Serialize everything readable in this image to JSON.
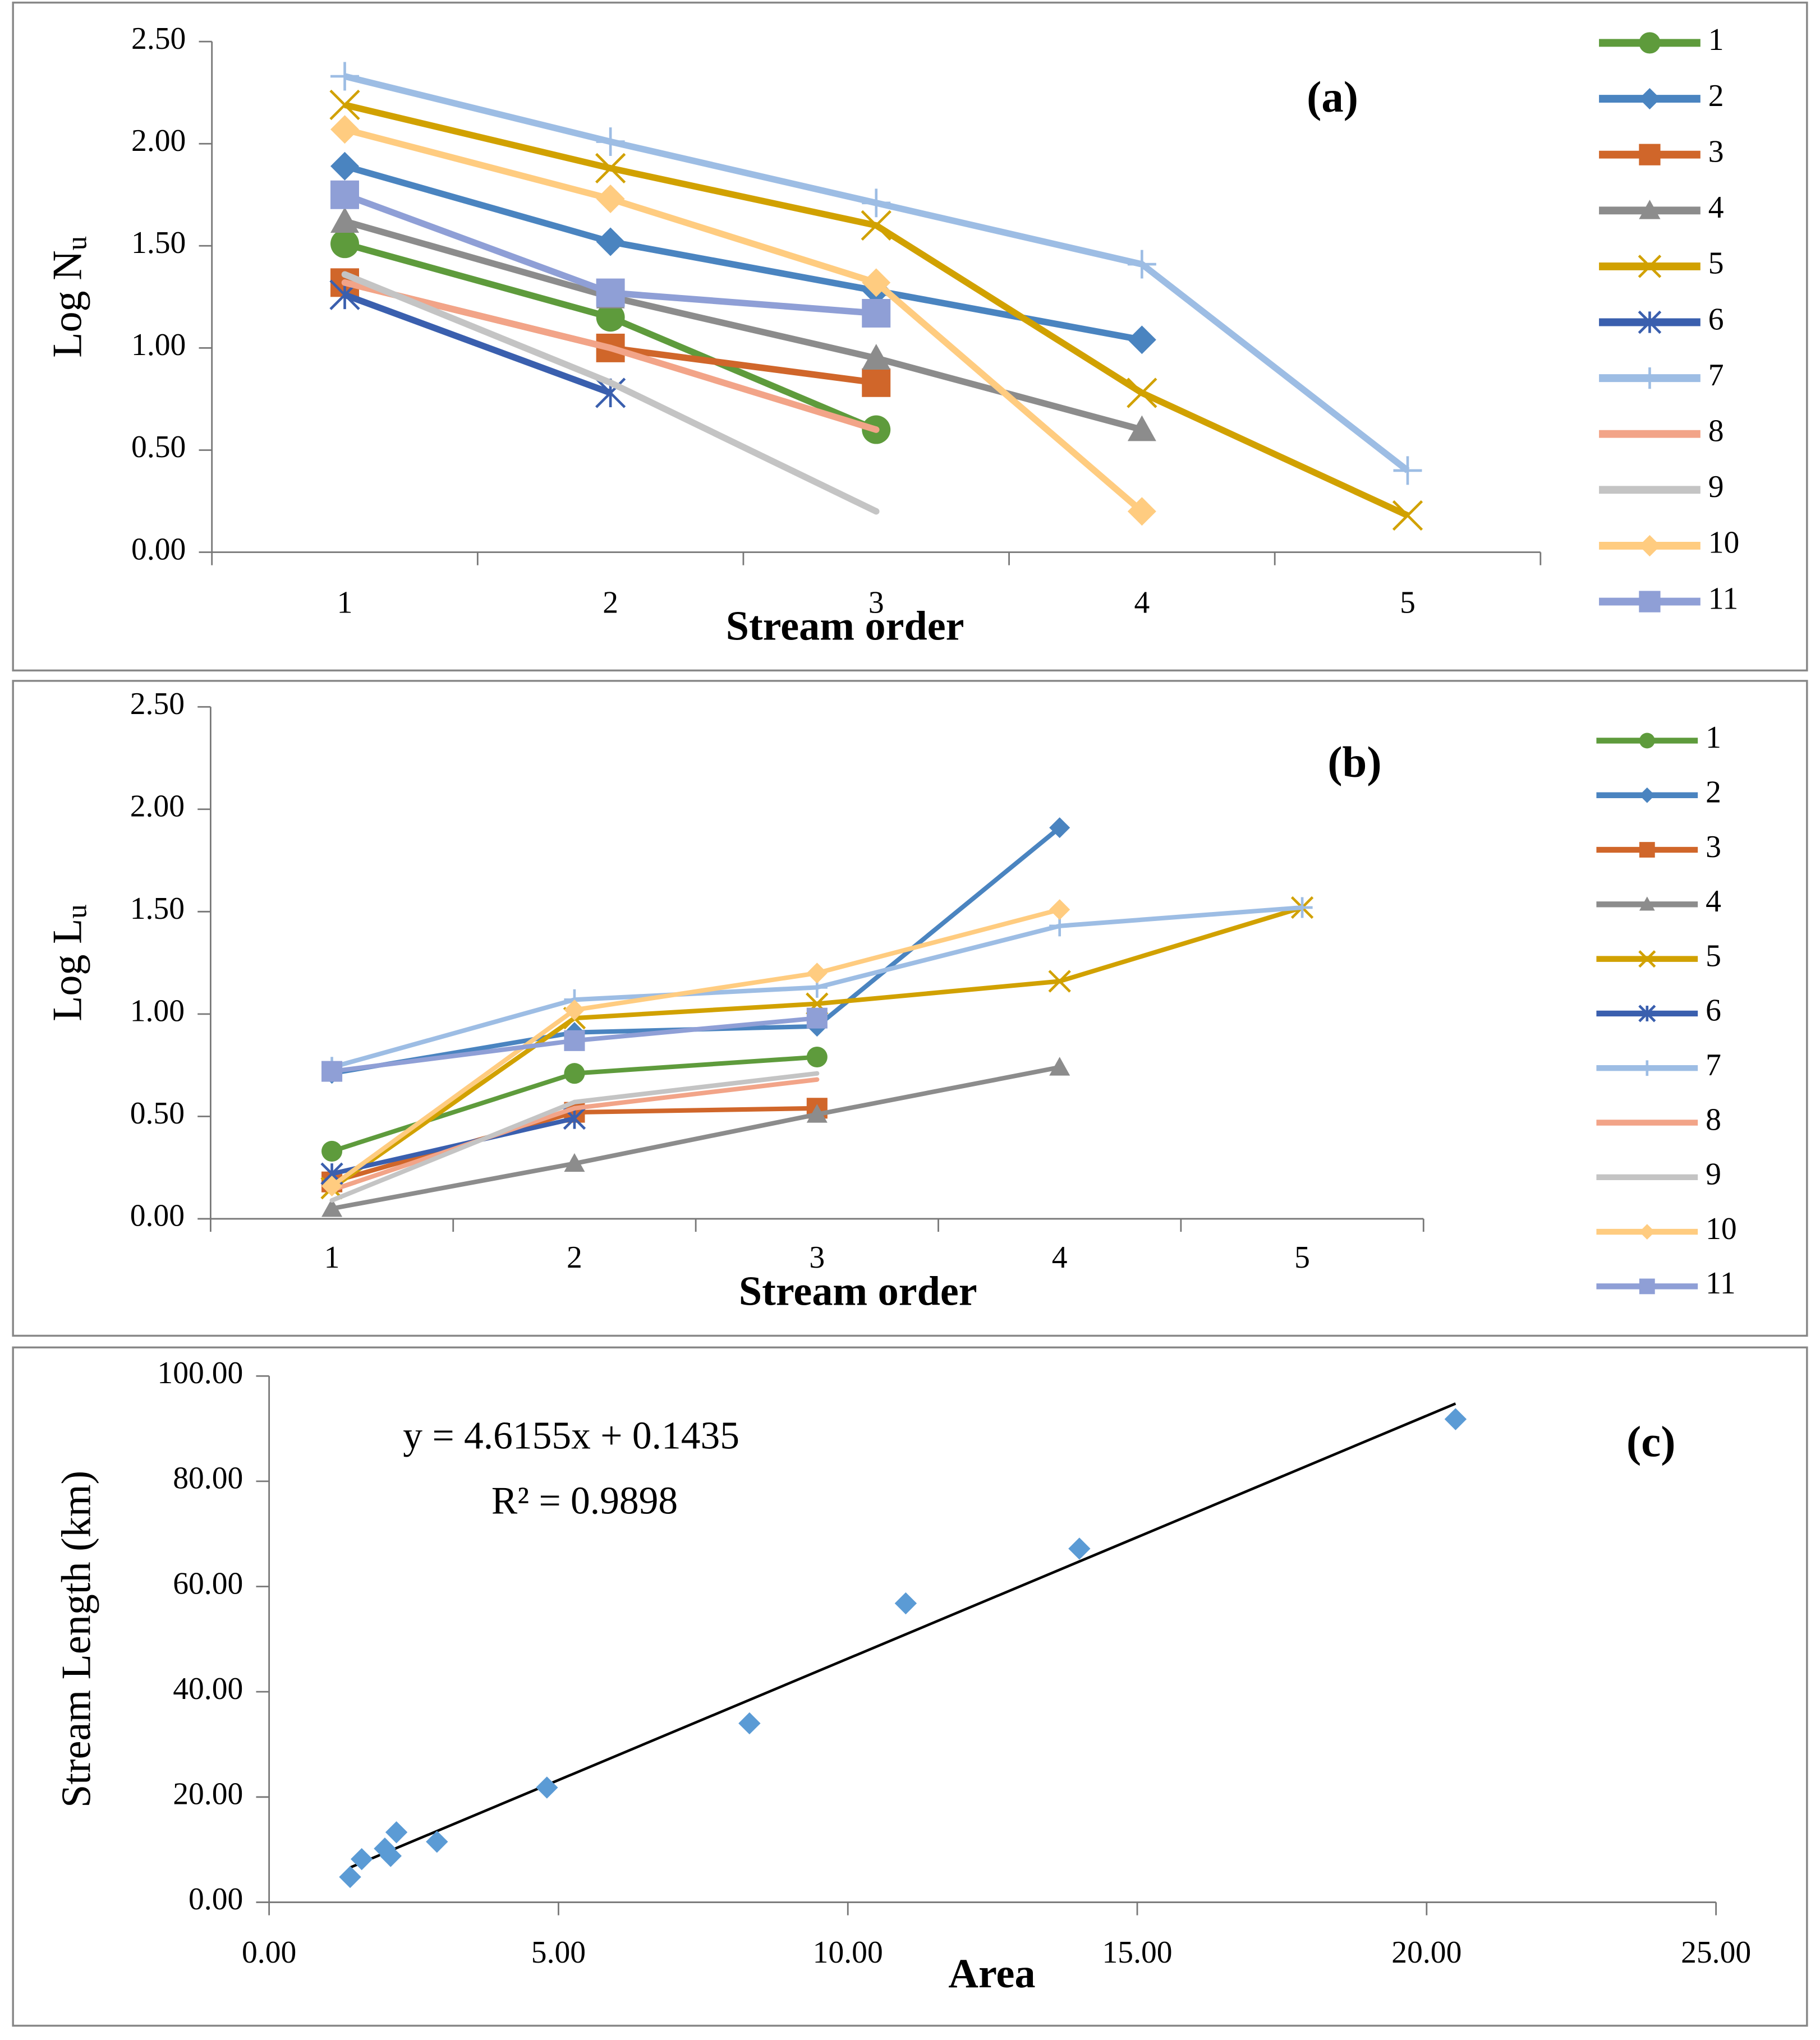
{
  "chart_data": [
    {
      "type": "line",
      "annotation": "(a)",
      "xlabel": "Stream order",
      "ylabel": "Log N",
      "ylabel_subscript": "u",
      "categories": [
        "1",
        "2",
        "3",
        "4",
        "5"
      ],
      "ylim": [
        0,
        2.5
      ],
      "yticks": [
        {
          "value": 0,
          "label": "0.00"
        },
        {
          "value": 0.5,
          "label": "0.50"
        },
        {
          "value": 1,
          "label": "1.00"
        },
        {
          "value": 1.5,
          "label": "1.50"
        },
        {
          "value": 2,
          "label": "2.00"
        },
        {
          "value": 2.5,
          "label": "2.50"
        }
      ],
      "series": [
        {
          "name": "1",
          "color": "#5e9b3c",
          "marker": "circle",
          "values": [
            1.51,
            1.15,
            0.6,
            null,
            null
          ]
        },
        {
          "name": "2",
          "color": "#4a84c0",
          "marker": "diamond",
          "values": [
            1.89,
            1.52,
            1.28,
            1.04,
            null
          ]
        },
        {
          "name": "3",
          "color": "#d0662a",
          "marker": "square",
          "values": [
            1.32,
            1.0,
            0.83,
            null,
            null
          ]
        },
        {
          "name": "4",
          "color": "#8c8c8c",
          "marker": "triangle",
          "values": [
            1.62,
            1.25,
            0.95,
            0.6,
            null
          ]
        },
        {
          "name": "5",
          "color": "#d1a100",
          "marker": "x",
          "values": [
            2.19,
            1.88,
            1.6,
            0.78,
            0.18
          ]
        },
        {
          "name": "6",
          "color": "#3a5fae",
          "marker": "star",
          "values": [
            1.26,
            0.78,
            null,
            null,
            null
          ]
        },
        {
          "name": "7",
          "color": "#9dbde4",
          "marker": "plus",
          "values": [
            2.33,
            2.01,
            1.71,
            1.41,
            0.4
          ]
        },
        {
          "name": "8",
          "color": "#f2a488",
          "marker": "none",
          "values": [
            1.32,
            1.0,
            0.6,
            null,
            null
          ]
        },
        {
          "name": "9",
          "color": "#c4c4c4",
          "marker": "none",
          "values": [
            1.36,
            0.83,
            0.2,
            null,
            null
          ]
        },
        {
          "name": "10",
          "color": "#ffcc80",
          "marker": "diamond",
          "values": [
            2.07,
            1.73,
            1.32,
            0.2,
            null
          ]
        },
        {
          "name": "11",
          "color": "#8f9fd6",
          "marker": "square",
          "values": [
            1.75,
            1.27,
            1.17,
            null,
            null
          ]
        }
      ]
    },
    {
      "type": "line",
      "annotation": "(b)",
      "xlabel": "Stream order",
      "ylabel": "Log L",
      "ylabel_subscript": "u",
      "categories": [
        "1",
        "2",
        "3",
        "4",
        "5"
      ],
      "ylim": [
        0,
        2.5
      ],
      "yticks": [
        {
          "value": 0,
          "label": "0.00"
        },
        {
          "value": 0.5,
          "label": "0.50"
        },
        {
          "value": 1,
          "label": "1.00"
        },
        {
          "value": 1.5,
          "label": "1.50"
        },
        {
          "value": 2,
          "label": "2.00"
        },
        {
          "value": 2.5,
          "label": "2.50"
        }
      ],
      "series": [
        {
          "name": "1",
          "color": "#5e9b3c",
          "marker": "circle",
          "values": [
            0.33,
            0.71,
            0.79,
            null,
            null
          ]
        },
        {
          "name": "2",
          "color": "#4a84c0",
          "marker": "diamond",
          "values": [
            0.71,
            0.91,
            0.94,
            1.91,
            null
          ]
        },
        {
          "name": "3",
          "color": "#d0662a",
          "marker": "square",
          "values": [
            0.18,
            0.52,
            0.54,
            null,
            null
          ]
        },
        {
          "name": "4",
          "color": "#8c8c8c",
          "marker": "triangle",
          "values": [
            0.05,
            0.27,
            0.51,
            0.74,
            null
          ]
        },
        {
          "name": "5",
          "color": "#d1a100",
          "marker": "x",
          "values": [
            0.15,
            0.98,
            1.05,
            1.16,
            1.52
          ]
        },
        {
          "name": "6",
          "color": "#3a5fae",
          "marker": "star",
          "values": [
            0.22,
            0.49,
            null,
            null,
            null
          ]
        },
        {
          "name": "7",
          "color": "#9dbde4",
          "marker": "plus",
          "values": [
            0.74,
            1.07,
            1.13,
            1.43,
            1.52
          ]
        },
        {
          "name": "8",
          "color": "#f2a488",
          "marker": "none",
          "values": [
            0.14,
            0.54,
            0.68,
            null,
            null
          ]
        },
        {
          "name": "9",
          "color": "#c4c4c4",
          "marker": "none",
          "values": [
            0.09,
            0.57,
            0.71,
            null,
            null
          ]
        },
        {
          "name": "10",
          "color": "#ffcc80",
          "marker": "diamond",
          "values": [
            0.16,
            1.02,
            1.2,
            1.51,
            null
          ]
        },
        {
          "name": "11",
          "color": "#8f9fd6",
          "marker": "square",
          "values": [
            0.72,
            0.87,
            0.98,
            null,
            null
          ]
        }
      ]
    },
    {
      "type": "scatter",
      "annotation": "(c)",
      "xlabel": "Area",
      "ylabel": "Stream Length (km)",
      "equation": "y = 4.6155x + 0.1435",
      "r_squared": "R² = 0.9898",
      "trendline": {
        "slope": 4.6155,
        "intercept": 0.1435,
        "color": "#000000"
      },
      "color": "#5b9bd5",
      "x": [
        1.4,
        1.6,
        2.0,
        2.1,
        2.2,
        2.9,
        4.8,
        8.3,
        11.0,
        14.0,
        20.5
      ],
      "values": [
        4.8,
        8.2,
        10.2,
        8.8,
        13.3,
        11.5,
        21.8,
        34.0,
        56.8,
        67.2,
        91.8
      ],
      "xlim": [
        0,
        25
      ],
      "xticks": [
        {
          "value": 0,
          "label": "0.00"
        },
        {
          "value": 5,
          "label": "5.00"
        },
        {
          "value": 10,
          "label": "10.00"
        },
        {
          "value": 15,
          "label": "15.00"
        },
        {
          "value": 20,
          "label": "20.00"
        },
        {
          "value": 25,
          "label": "25.00"
        }
      ],
      "ylim": [
        0,
        100
      ],
      "yticks": [
        {
          "value": 0,
          "label": "0.00"
        },
        {
          "value": 20,
          "label": "20.00"
        },
        {
          "value": 40,
          "label": "40.00"
        },
        {
          "value": 60,
          "label": "60.00"
        },
        {
          "value": 80,
          "label": "80.00"
        },
        {
          "value": 100,
          "label": "100.00"
        }
      ]
    }
  ]
}
